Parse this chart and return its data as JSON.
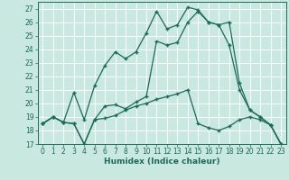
{
  "xlabel": "Humidex (Indice chaleur)",
  "background_color": "#c8e8e0",
  "grid_color": "#ffffff",
  "line_color": "#1a6b5a",
  "xlim": [
    -0.5,
    23.5
  ],
  "ylim": [
    17,
    27.5
  ],
  "yticks": [
    17,
    18,
    19,
    20,
    21,
    22,
    23,
    24,
    25,
    26,
    27
  ],
  "xticks": [
    0,
    1,
    2,
    3,
    4,
    5,
    6,
    7,
    8,
    9,
    10,
    11,
    12,
    13,
    14,
    15,
    16,
    17,
    18,
    19,
    20,
    21,
    22,
    23
  ],
  "series1_x": [
    0,
    1,
    2,
    3,
    4,
    5,
    6,
    7,
    8,
    9,
    10,
    11,
    12,
    13,
    14,
    15,
    16,
    17,
    18,
    19,
    20,
    21,
    22,
    23
  ],
  "series1_y": [
    18.5,
    19.0,
    18.6,
    18.5,
    17.0,
    18.8,
    18.9,
    19.1,
    19.5,
    19.8,
    20.0,
    20.3,
    20.5,
    20.7,
    21.0,
    18.5,
    18.2,
    18.0,
    18.3,
    18.8,
    19.0,
    18.8,
    18.4,
    17.0
  ],
  "series2_x": [
    0,
    1,
    2,
    3,
    4,
    5,
    6,
    7,
    8,
    9,
    10,
    11,
    12,
    13,
    14,
    15,
    16,
    17,
    18,
    19,
    20,
    21,
    22,
    23
  ],
  "series2_y": [
    18.5,
    19.0,
    18.6,
    20.8,
    18.8,
    21.3,
    22.8,
    23.8,
    23.3,
    23.8,
    25.2,
    26.8,
    25.5,
    25.8,
    27.1,
    26.9,
    26.0,
    25.8,
    24.3,
    21.0,
    19.5,
    19.0,
    18.4,
    17.0
  ],
  "series3_x": [
    0,
    1,
    2,
    3,
    4,
    5,
    6,
    7,
    8,
    9,
    10,
    11,
    12,
    13,
    14,
    15,
    16,
    17,
    18,
    19,
    20,
    21,
    22,
    23
  ],
  "series3_y": [
    18.5,
    19.0,
    18.6,
    18.5,
    17.0,
    18.8,
    19.8,
    19.9,
    19.6,
    20.1,
    20.5,
    24.6,
    24.3,
    24.5,
    26.0,
    26.8,
    26.0,
    25.8,
    26.0,
    21.5,
    19.5,
    19.0,
    18.4,
    17.0
  ],
  "marker": "+",
  "markersize": 3.5,
  "linewidth": 0.9,
  "tick_fontsize": 5.5,
  "xlabel_fontsize": 6.5
}
